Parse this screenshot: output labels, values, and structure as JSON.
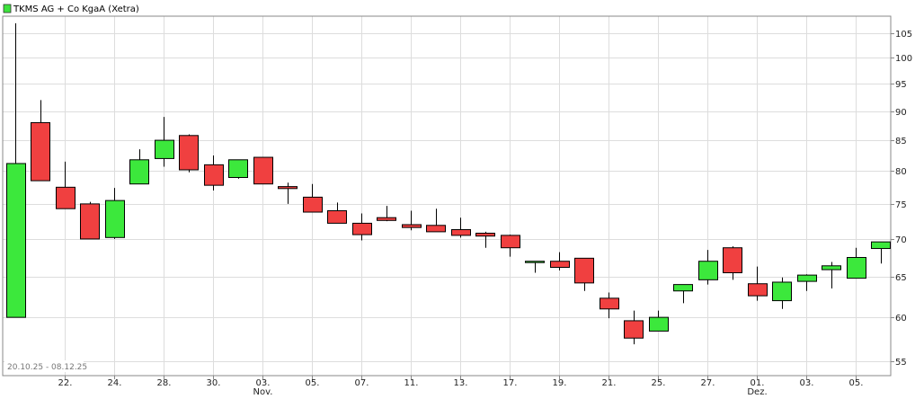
{
  "chart_data": {
    "type": "candlestick",
    "title": "TKMS AG + Co KgaA (Xetra)",
    "date_range": "20.10.25 - 08.12.25",
    "legend_color": "#3de33d",
    "colors": {
      "up": "#3ce83c",
      "down": "#f04040",
      "grid": "#dddddd",
      "border": "#888888"
    },
    "ylim": [
      53.5,
      108.5
    ],
    "y_scale": "log",
    "yticks": [
      55,
      60,
      65,
      70,
      75,
      80,
      85,
      90,
      95,
      100,
      105
    ],
    "x_tick_labels": [
      {
        "i": 2,
        "label": "22."
      },
      {
        "i": 4,
        "label": "24."
      },
      {
        "i": 6,
        "label": "28."
      },
      {
        "i": 8,
        "label": "30."
      },
      {
        "i": 10,
        "label": "03.",
        "sub": "Nov."
      },
      {
        "i": 12,
        "label": "05."
      },
      {
        "i": 14,
        "label": "07."
      },
      {
        "i": 16,
        "label": "11."
      },
      {
        "i": 18,
        "label": "13."
      },
      {
        "i": 20,
        "label": "17."
      },
      {
        "i": 22,
        "label": "19."
      },
      {
        "i": 24,
        "label": "21."
      },
      {
        "i": 26,
        "label": "25."
      },
      {
        "i": 28,
        "label": "27."
      },
      {
        "i": 30,
        "label": "01.",
        "sub": "Dez."
      },
      {
        "i": 32,
        "label": "03."
      },
      {
        "i": 34,
        "label": "05."
      }
    ],
    "candles": [
      {
        "open": 60.0,
        "high": 107.0,
        "low": 60.0,
        "close": 81.2
      },
      {
        "open": 88.0,
        "high": 92.0,
        "low": 78.5,
        "close": 78.5
      },
      {
        "open": 77.5,
        "high": 81.5,
        "low": 74.3,
        "close": 74.3
      },
      {
        "open": 75.0,
        "high": 75.3,
        "low": 70.0,
        "close": 70.0
      },
      {
        "open": 70.2,
        "high": 77.4,
        "low": 70.0,
        "close": 75.5
      },
      {
        "open": 78.0,
        "high": 83.5,
        "low": 78.0,
        "close": 81.8
      },
      {
        "open": 82.0,
        "high": 89.0,
        "low": 80.7,
        "close": 85.0
      },
      {
        "open": 85.8,
        "high": 86.0,
        "low": 79.8,
        "close": 80.2
      },
      {
        "open": 81.0,
        "high": 82.5,
        "low": 77.0,
        "close": 77.8
      },
      {
        "open": 79.0,
        "high": 81.8,
        "low": 78.8,
        "close": 81.8
      },
      {
        "open": 82.2,
        "high": 82.2,
        "low": 78.0,
        "close": 78.0
      },
      {
        "open": 77.6,
        "high": 78.2,
        "low": 75.0,
        "close": 77.3
      },
      {
        "open": 76.0,
        "high": 78.0,
        "low": 73.8,
        "close": 73.8
      },
      {
        "open": 74.0,
        "high": 75.2,
        "low": 72.2,
        "close": 72.2
      },
      {
        "open": 72.2,
        "high": 73.6,
        "low": 69.8,
        "close": 70.6
      },
      {
        "open": 73.0,
        "high": 74.7,
        "low": 72.5,
        "close": 72.6
      },
      {
        "open": 72.0,
        "high": 74.0,
        "low": 71.2,
        "close": 71.6
      },
      {
        "open": 71.9,
        "high": 74.3,
        "low": 71.0,
        "close": 71.0
      },
      {
        "open": 71.3,
        "high": 73.0,
        "low": 70.2,
        "close": 70.5
      },
      {
        "open": 70.8,
        "high": 71.0,
        "low": 68.8,
        "close": 70.4
      },
      {
        "open": 70.5,
        "high": 70.6,
        "low": 67.6,
        "close": 68.8
      },
      {
        "open": 67.0,
        "high": 67.0,
        "low": 65.5,
        "close": 67.0
      },
      {
        "open": 67.0,
        "high": 68.2,
        "low": 65.8,
        "close": 66.2
      },
      {
        "open": 67.4,
        "high": 67.4,
        "low": 63.2,
        "close": 64.2
      },
      {
        "open": 62.3,
        "high": 63.0,
        "low": 59.9,
        "close": 61.0
      },
      {
        "open": 59.6,
        "high": 60.8,
        "low": 56.9,
        "close": 57.6
      },
      {
        "open": 58.4,
        "high": 60.8,
        "low": 58.4,
        "close": 60.0
      },
      {
        "open": 63.2,
        "high": 64.0,
        "low": 61.7,
        "close": 64.0
      },
      {
        "open": 64.6,
        "high": 68.5,
        "low": 64.0,
        "close": 67.0
      },
      {
        "open": 68.8,
        "high": 69.0,
        "low": 64.6,
        "close": 65.5
      },
      {
        "open": 64.1,
        "high": 66.3,
        "low": 62.0,
        "close": 62.6
      },
      {
        "open": 62.0,
        "high": 64.9,
        "low": 61.0,
        "close": 64.3
      },
      {
        "open": 64.4,
        "high": 65.3,
        "low": 63.2,
        "close": 65.2
      },
      {
        "open": 65.9,
        "high": 66.9,
        "low": 63.5,
        "close": 66.4
      },
      {
        "open": 64.8,
        "high": 68.8,
        "low": 64.8,
        "close": 67.5
      },
      {
        "open": 68.7,
        "high": 69.6,
        "low": 66.7,
        "close": 69.6
      }
    ]
  }
}
